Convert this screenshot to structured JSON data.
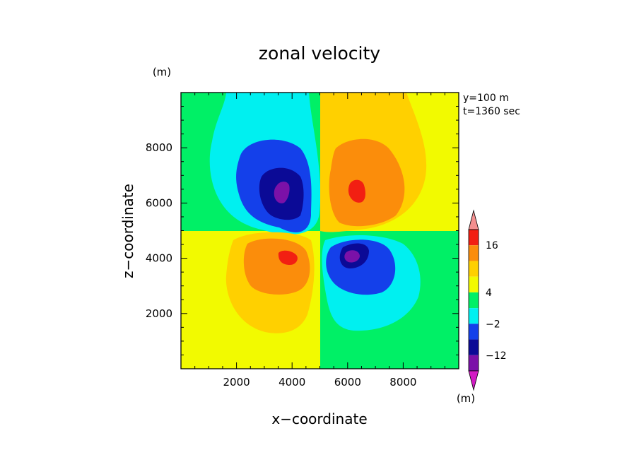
{
  "chart_data": {
    "type": "heatmap",
    "title": "zonal velocity",
    "xlabel": "x−coordinate",
    "ylabel": "z−coordinate",
    "x_unit": "(m)",
    "y_unit": "(m)",
    "annotations": [
      "y=100 m",
      "t=1360 sec"
    ],
    "xlim": [
      0,
      10000
    ],
    "ylim": [
      0,
      10000
    ],
    "x_ticks": [
      2000,
      4000,
      6000,
      8000
    ],
    "x_tick_labels": [
      "2000",
      "4000",
      "6000",
      "8000"
    ],
    "y_ticks": [
      2000,
      4000,
      6000,
      8000
    ],
    "y_tick_labels": [
      "2000",
      "4000",
      "6000",
      "8000"
    ],
    "colorbar": {
      "levels": [
        -17,
        -12,
        -7,
        -2,
        2,
        4,
        8,
        12,
        16
      ],
      "labels": [
        {
          "value": 16,
          "text": "16"
        },
        {
          "value": 4,
          "text": "4"
        },
        {
          "value": -2,
          "text": "−2"
        },
        {
          "value": -12,
          "text": "−12"
        }
      ],
      "colors": [
        "#d21bc4",
        "#7b11a8",
        "#0b0a96",
        "#1440ea",
        "#00f0f0",
        "#00f066",
        "#f2fa00",
        "#ffd000",
        "#fb8d0b",
        "#f21f12",
        "#f38f8f"
      ]
    },
    "background_value": 0,
    "background_left_top": "green",
    "background_right_top": "yellow",
    "vortices": [
      {
        "name": "upper-left",
        "x": 3750,
        "z": 6300,
        "peak": -17,
        "sign": "negative"
      },
      {
        "name": "upper-right",
        "x": 6300,
        "z": 6300,
        "peak": 16,
        "sign": "positive"
      },
      {
        "name": "lower-left",
        "x": 3850,
        "z": 4150,
        "peak": 16,
        "sign": "positive"
      },
      {
        "name": "lower-right",
        "x": 6200,
        "z": 4100,
        "peak": -17,
        "sign": "negative"
      }
    ]
  }
}
